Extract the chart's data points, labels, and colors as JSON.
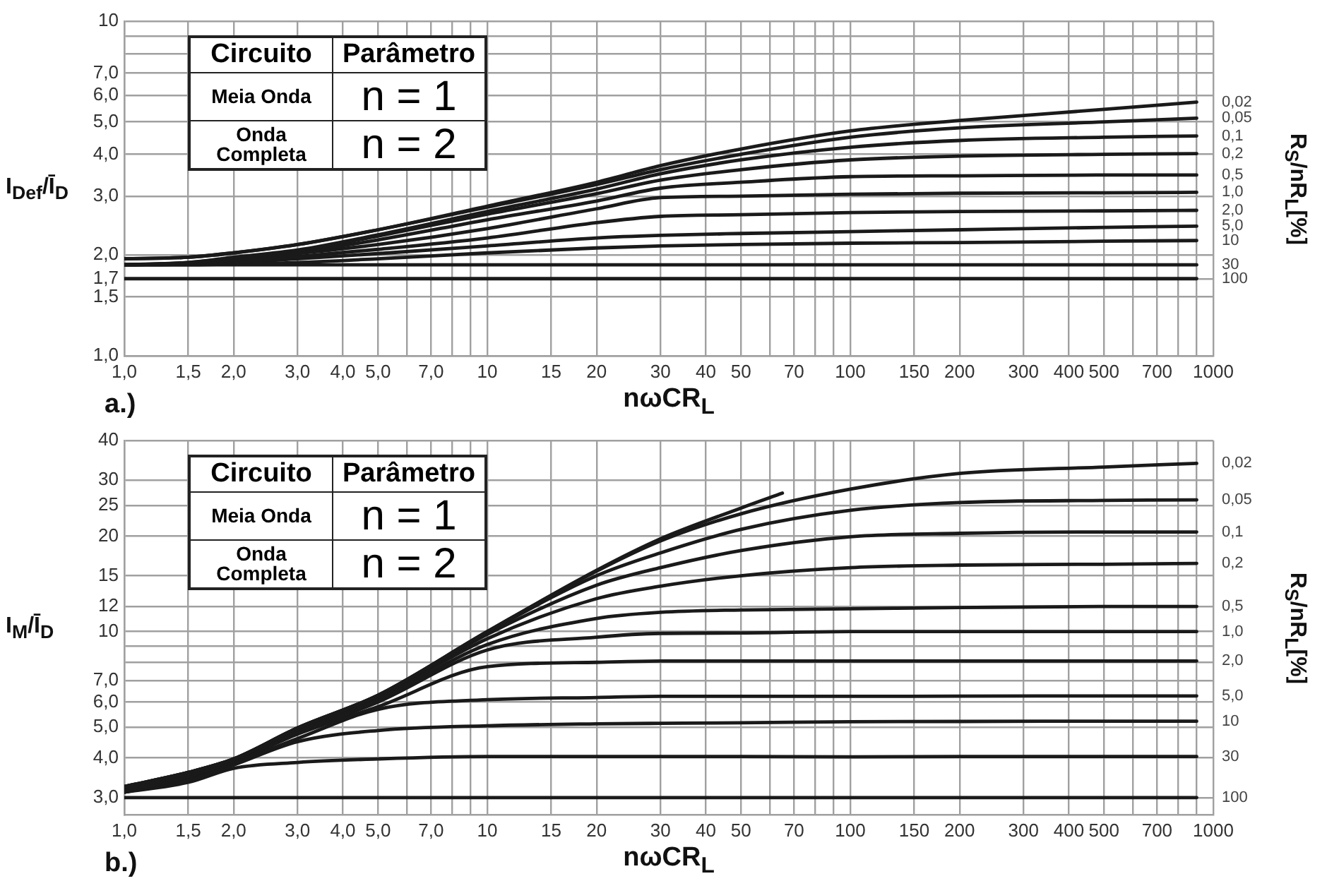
{
  "chart_data": [
    {
      "type": "line",
      "xlabel": "nωCR$_{L}$",
      "ylabel": "I$_{Def}$/Ī$_{D}$",
      "y2label": "R$_{S}$/nR$_{L}$[%]",
      "annotations": [
        "Circuito",
        "Parâmetro",
        "Meia Onda",
        "n = 1",
        "Onda Completa",
        "n = 2",
        "a.)"
      ],
      "log": "xy",
      "grid": true,
      "legend": "right",
      "marker": "none",
      "xlim": [
        1,
        1000
      ],
      "ylim": [
        1,
        10
      ],
      "xticks": [
        {
          "value": 1,
          "label": "1,0"
        },
        {
          "value": 1.5,
          "label": "1,5"
        },
        {
          "value": 2,
          "label": "2,0"
        },
        {
          "value": 3,
          "label": "3,0"
        },
        {
          "value": 4,
          "label": "4,0"
        },
        {
          "value": 5,
          "label": "5,0"
        },
        {
          "value": 6,
          "label": null
        },
        {
          "value": 7,
          "label": "7,0"
        },
        {
          "value": 8,
          "label": null
        },
        {
          "value": 9,
          "label": null
        },
        10,
        15,
        20,
        30,
        40,
        50,
        {
          "value": 60,
          "label": null
        },
        70,
        {
          "value": 80,
          "label": null
        },
        {
          "value": 90,
          "label": null
        },
        100,
        150,
        200,
        300,
        400,
        500,
        {
          "value": 600,
          "label": null
        },
        700,
        {
          "value": 800,
          "label": null
        },
        {
          "value": 900,
          "label": null
        },
        1000
      ],
      "yticks": [
        {
          "value": 1,
          "label": "1,0"
        },
        {
          "value": 1.5,
          "label": "1,5"
        },
        {
          "value": 1.7,
          "label": "1,7"
        },
        {
          "value": 2,
          "label": "2,0"
        },
        {
          "value": 3,
          "label": "3,0"
        },
        {
          "value": 4,
          "label": "4,0"
        },
        {
          "value": 5,
          "label": "5,0"
        },
        {
          "value": 6,
          "label": "6,0"
        },
        {
          "value": 7,
          "label": "7,0"
        },
        {
          "value": 8,
          "label": null
        },
        {
          "value": 9,
          "label": null
        },
        10
      ],
      "x": [
        1,
        1.5,
        2,
        3,
        5,
        10,
        20,
        30,
        50,
        100,
        200,
        500,
        900
      ],
      "series": [
        {
          "name": "0,02",
          "color": "#1a1a1a",
          "values": [
            1.95,
            1.97,
            2.03,
            2.15,
            2.38,
            2.8,
            3.3,
            3.7,
            4.15,
            4.7,
            5.05,
            5.45,
            5.73
          ]
        },
        {
          "name": "0,05",
          "color": "#1a1a1a",
          "values": [
            1.95,
            1.97,
            2.03,
            2.15,
            2.38,
            2.78,
            3.25,
            3.6,
            4.0,
            4.5,
            4.8,
            5.0,
            5.13
          ]
        },
        {
          "name": "0,1",
          "color": "#1a1a1a",
          "values": [
            1.87,
            1.9,
            1.97,
            2.07,
            2.3,
            2.7,
            3.15,
            3.5,
            3.85,
            4.2,
            4.4,
            4.5,
            4.54
          ]
        },
        {
          "name": "0,2",
          "color": "#1a1a1a",
          "values": [
            1.87,
            1.9,
            1.96,
            2.06,
            2.28,
            2.65,
            3.05,
            3.35,
            3.6,
            3.85,
            3.95,
            4.0,
            4.02
          ]
        },
        {
          "name": "0,5",
          "color": "#1a1a1a",
          "values": [
            1.87,
            1.89,
            1.94,
            2.04,
            2.22,
            2.55,
            2.9,
            3.17,
            3.3,
            3.43,
            3.45,
            3.47,
            3.47
          ]
        },
        {
          "name": "1,0",
          "color": "#1a1a1a",
          "values": [
            1.87,
            1.89,
            1.93,
            2.02,
            2.15,
            2.4,
            2.75,
            2.97,
            3.0,
            3.04,
            3.06,
            3.07,
            3.08
          ]
        },
        {
          "name": "2,0",
          "color": "#1a1a1a",
          "values": [
            1.87,
            1.88,
            1.91,
            1.98,
            2.08,
            2.25,
            2.5,
            2.61,
            2.64,
            2.68,
            2.7,
            2.71,
            2.72
          ]
        },
        {
          "name": "5,0",
          "color": "#1a1a1a",
          "values": [
            1.87,
            1.88,
            1.9,
            1.95,
            2.02,
            2.13,
            2.25,
            2.29,
            2.32,
            2.35,
            2.38,
            2.42,
            2.44
          ]
        },
        {
          "name": "10",
          "color": "#1a1a1a",
          "values": [
            1.87,
            1.87,
            1.88,
            1.9,
            1.95,
            2.03,
            2.1,
            2.13,
            2.15,
            2.17,
            2.18,
            2.2,
            2.21
          ]
        },
        {
          "name": "30",
          "color": "#1a1a1a",
          "values": [
            1.87,
            1.87,
            1.87,
            1.87,
            1.87,
            1.87,
            1.87,
            1.87,
            1.87,
            1.87,
            1.87,
            1.87,
            1.87
          ]
        },
        {
          "name": "100",
          "color": "#1a1a1a",
          "values": [
            1.7,
            1.7,
            1.7,
            1.7,
            1.7,
            1.7,
            1.7,
            1.7,
            1.7,
            1.7,
            1.7,
            1.7,
            1.7
          ]
        }
      ]
    },
    {
      "type": "line",
      "xlabel": "nωCR$_{L}$",
      "ylabel": "I$_{M}$/Ī$_{D}$",
      "y2label": "R$_{S}$/nR$_{L}$[%]",
      "annotations": [
        "Circuito",
        "Parâmetro",
        "Meia Onda",
        "n = 1",
        "Onda Completa",
        "n = 2",
        "b.)"
      ],
      "log": "xy",
      "grid": true,
      "legend": "right",
      "marker": "none",
      "xlim": [
        1,
        1000
      ],
      "ylim": [
        2.65,
        40
      ],
      "xticks": [
        {
          "value": 1,
          "label": "1,0"
        },
        {
          "value": 1.5,
          "label": "1,5"
        },
        {
          "value": 2,
          "label": "2,0"
        },
        {
          "value": 3,
          "label": "3,0"
        },
        {
          "value": 4,
          "label": "4,0"
        },
        {
          "value": 5,
          "label": "5,0"
        },
        {
          "value": 6,
          "label": null
        },
        {
          "value": 7,
          "label": "7,0"
        },
        {
          "value": 8,
          "label": null
        },
        {
          "value": 9,
          "label": null
        },
        10,
        15,
        20,
        30,
        40,
        50,
        {
          "value": 60,
          "label": null
        },
        70,
        {
          "value": 80,
          "label": null
        },
        {
          "value": 90,
          "label": null
        },
        100,
        150,
        200,
        300,
        400,
        500,
        {
          "value": 600,
          "label": null
        },
        700,
        {
          "value": 800,
          "label": null
        },
        {
          "value": 900,
          "label": null
        },
        1000
      ],
      "yticks": [
        {
          "value": 3,
          "label": "3,0"
        },
        {
          "value": 4,
          "label": "4,0"
        },
        {
          "value": 5,
          "label": "5,0"
        },
        {
          "value": 6,
          "label": "6,0"
        },
        {
          "value": 7,
          "label": "7,0"
        },
        {
          "value": 8,
          "label": null
        },
        {
          "value": 9,
          "label": null
        },
        10,
        12,
        15,
        20,
        25,
        30,
        40
      ],
      "x": [
        1,
        1.5,
        2,
        3,
        5,
        10,
        20,
        30,
        50,
        100,
        200,
        500,
        900
      ],
      "series": [
        {
          "name": "0,02",
          "color": "#1a1a1a",
          "values": [
            3.25,
            3.6,
            3.97,
            4.97,
            6.3,
            10.0,
            15.5,
            19.3,
            23.5,
            28.1,
            31.5,
            33,
            33.9
          ]
        },
        {
          "color": "#1a1a1a",
          "x": [
            1,
            1.5,
            2,
            3,
            5,
            10,
            20,
            30,
            50,
            65
          ],
          "values": [
            3.25,
            3.6,
            3.97,
            4.97,
            6.3,
            10.0,
            15.6,
            19.6,
            24.5,
            27.3
          ]
        },
        {
          "name": "0,05",
          "color": "#1a1a1a",
          "values": [
            3.25,
            3.6,
            3.97,
            4.97,
            6.3,
            9.95,
            15,
            17.7,
            21,
            24.1,
            25.5,
            25.9,
            26.0
          ]
        },
        {
          "name": "0,1",
          "color": "#1a1a1a",
          "values": [
            3.2,
            3.55,
            3.95,
            4.95,
            6.25,
            9.8,
            14,
            15.9,
            18,
            19.9,
            20.4,
            20.6,
            20.6
          ]
        },
        {
          "name": "0,2",
          "color": "#1a1a1a",
          "values": [
            3.2,
            3.55,
            3.95,
            4.9,
            6.2,
            9.5,
            12.7,
            13.9,
            15,
            15.9,
            16.2,
            16.3,
            16.4
          ]
        },
        {
          "name": "0,5",
          "color": "#1a1a1a",
          "values": [
            3.15,
            3.5,
            3.92,
            4.85,
            6.1,
            9.1,
            11,
            11.5,
            11.7,
            11.8,
            11.9,
            12.0,
            12.0
          ]
        },
        {
          "name": "1,0",
          "color": "#1a1a1a",
          "values": [
            3.15,
            3.5,
            3.9,
            4.8,
            6.0,
            8.75,
            9.6,
            9.87,
            9.9,
            10.0,
            10.0,
            10.0,
            10.0
          ]
        },
        {
          "name": "2,0",
          "color": "#1a1a1a",
          "values": [
            3.12,
            3.48,
            3.88,
            4.75,
            5.8,
            7.75,
            8.0,
            8.08,
            8.08,
            8.08,
            8.08,
            8.08,
            8.08
          ]
        },
        {
          "name": "5,0",
          "color": "#1a1a1a",
          "values": [
            3.12,
            3.45,
            3.85,
            4.6,
            5.69,
            6.1,
            6.2,
            6.25,
            6.25,
            6.25,
            6.26,
            6.27,
            6.27
          ]
        },
        {
          "name": "10",
          "color": "#1a1a1a",
          "values": [
            3.12,
            3.4,
            3.8,
            4.5,
            4.88,
            5.05,
            5.12,
            5.14,
            5.16,
            5.2,
            5.21,
            5.22,
            5.22
          ]
        },
        {
          "name": "30",
          "color": "#1a1a1a",
          "values": [
            3.12,
            3.35,
            3.71,
            3.87,
            3.97,
            4.04,
            4.04,
            4.04,
            4.04,
            4.03,
            4.04,
            4.04,
            4.04
          ]
        },
        {
          "name": "100",
          "color": "#1a1a1a",
          "values": [
            3.0,
            3.0,
            3.0,
            3.0,
            3.0,
            3.0,
            3.0,
            3.0,
            3.0,
            3.0,
            3.0,
            3.0,
            3.0
          ]
        }
      ]
    }
  ]
}
